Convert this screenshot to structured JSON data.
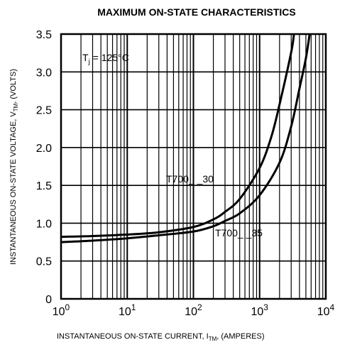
{
  "chart_data": {
    "type": "line",
    "title": "MAXIMUM ON-STATE CHARACTERISTICS",
    "xlabel": "INSTANTANEOUS ON-STATE CURRENT, I_TM, (AMPERES)",
    "xlabel_parts": {
      "pre": "INSTANTANEOUS ON-STATE CURRENT, I",
      "sub": "TM",
      "post": ", (AMPERES)"
    },
    "ylabel": "INSTANTANEOUS ON-STATE VOLTAGE, V_TM, (VOLTS)",
    "ylabel_parts": {
      "pre": "INSTANTANEOUS ON-STATE VOLTAGE, V",
      "sub": "TM",
      "post": ", (VOLTS)"
    },
    "x_scale": "log",
    "xlim": [
      1,
      10000
    ],
    "ylim": [
      0,
      3.5
    ],
    "grid": true,
    "x_ticks": [
      {
        "value": 1,
        "base": "10",
        "exp": "0"
      },
      {
        "value": 10,
        "base": "10",
        "exp": "1"
      },
      {
        "value": 100,
        "base": "10",
        "exp": "2"
      },
      {
        "value": 1000,
        "base": "10",
        "exp": "3"
      },
      {
        "value": 10000,
        "base": "10",
        "exp": "4"
      }
    ],
    "y_ticks": [
      {
        "value": 0,
        "label": "0"
      },
      {
        "value": 0.5,
        "label": "0.5"
      },
      {
        "value": 1.0,
        "label": "1.0"
      },
      {
        "value": 1.5,
        "label": "1.5"
      },
      {
        "value": 2.0,
        "label": "2.0"
      },
      {
        "value": 2.5,
        "label": "2.5"
      },
      {
        "value": 3.0,
        "label": "3.0"
      },
      {
        "value": 3.5,
        "label": "3.5"
      }
    ],
    "condition": {
      "main": "T",
      "sub": "j",
      "rest": " = 125°C"
    },
    "series": [
      {
        "name": "T700_ _30",
        "points": [
          [
            1,
            0.82
          ],
          [
            3,
            0.83
          ],
          [
            10,
            0.85
          ],
          [
            30,
            0.88
          ],
          [
            100,
            0.95
          ],
          [
            200,
            1.05
          ],
          [
            300,
            1.15
          ],
          [
            500,
            1.32
          ],
          [
            1000,
            1.73
          ],
          [
            1500,
            2.14
          ],
          [
            2000,
            2.57
          ],
          [
            3000,
            3.26
          ],
          [
            3300,
            3.5
          ]
        ]
      },
      {
        "name": "T700_ _35",
        "points": [
          [
            1,
            0.75
          ],
          [
            3,
            0.77
          ],
          [
            10,
            0.8
          ],
          [
            30,
            0.84
          ],
          [
            100,
            0.89
          ],
          [
            200,
            0.96
          ],
          [
            300,
            1.03
          ],
          [
            500,
            1.13
          ],
          [
            1000,
            1.37
          ],
          [
            2000,
            1.8
          ],
          [
            3000,
            2.28
          ],
          [
            4000,
            2.78
          ],
          [
            5000,
            3.18
          ],
          [
            5700,
            3.5
          ]
        ]
      }
    ]
  }
}
